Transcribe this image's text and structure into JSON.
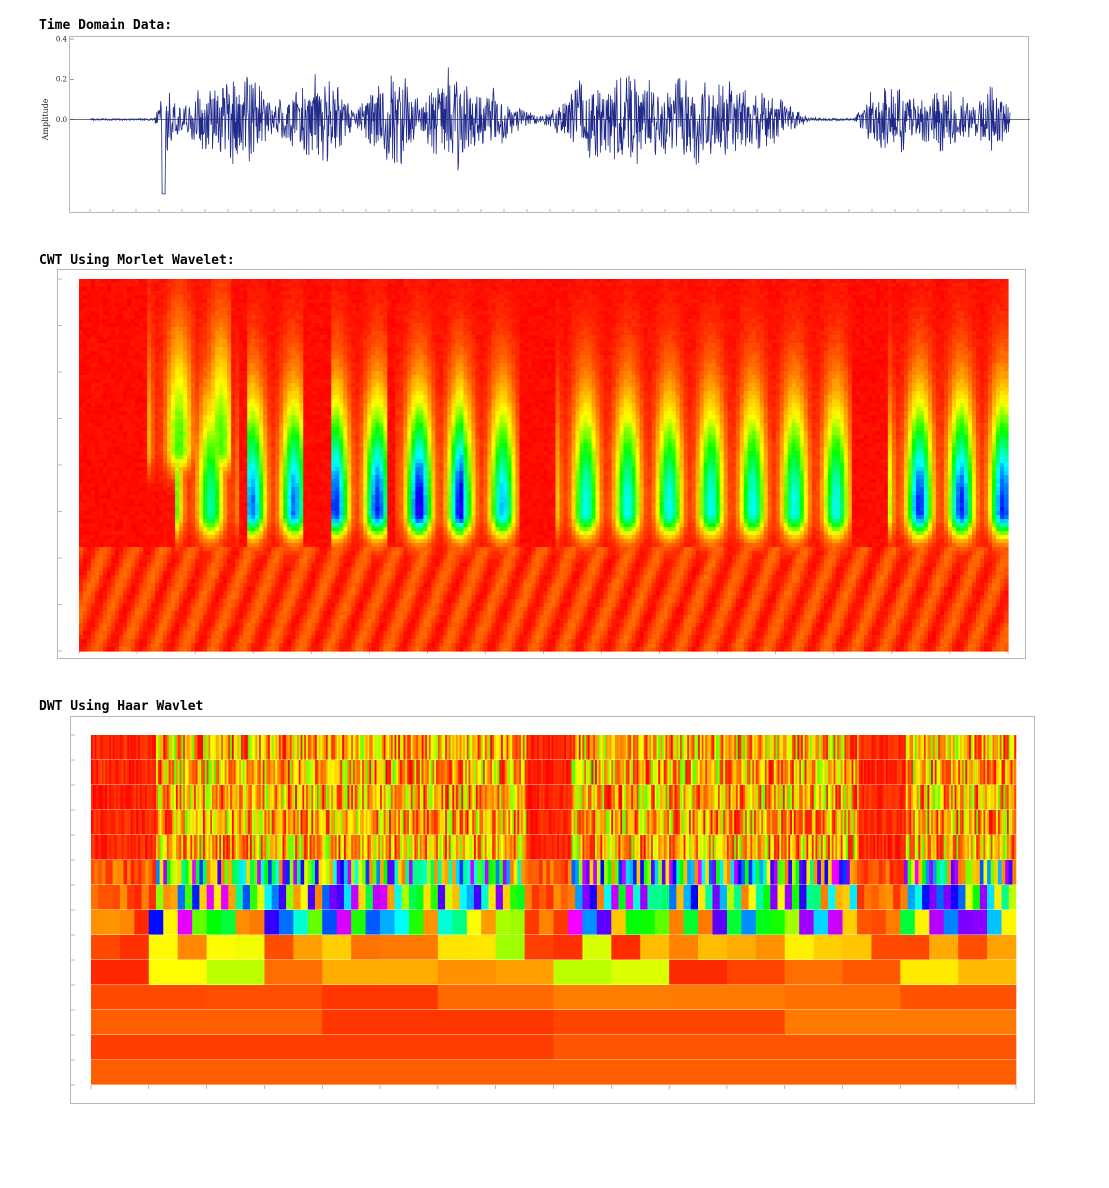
{
  "sections": {
    "time": {
      "title": "Time Domain Data:"
    },
    "cwt": {
      "title": "CWT Using Morlet Wavelet:"
    },
    "dwt": {
      "title": "DWT Using Haar Wavlet"
    }
  },
  "chart_data": [
    {
      "type": "line",
      "title": "Time Domain Data:",
      "ylabel": "Amplitude",
      "ylim": [
        -0.46,
        0.4
      ],
      "yticks": [
        0.4,
        0.2,
        0.0
      ],
      "ytick_labels": [
        "0.4",
        "0.2",
        "0.0"
      ],
      "series": [
        {
          "color": "#1f2a8a",
          "x_range": [
            0,
            1
          ],
          "envelope": [
            [
              0.0,
              0.005
            ],
            [
              0.07,
              0.005
            ],
            [
              0.08,
              0.19
            ],
            [
              0.09,
              0.15
            ],
            [
              0.1,
              0.06
            ],
            [
              0.12,
              0.16
            ],
            [
              0.15,
              0.24
            ],
            [
              0.18,
              0.21
            ],
            [
              0.2,
              0.08
            ],
            [
              0.23,
              0.18
            ],
            [
              0.25,
              0.25
            ],
            [
              0.27,
              0.18
            ],
            [
              0.29,
              0.04
            ],
            [
              0.31,
              0.2
            ],
            [
              0.34,
              0.25
            ],
            [
              0.36,
              0.08
            ],
            [
              0.38,
              0.24
            ],
            [
              0.4,
              0.3
            ],
            [
              0.42,
              0.12
            ],
            [
              0.44,
              0.18
            ],
            [
              0.46,
              0.07
            ],
            [
              0.49,
              0.02
            ],
            [
              0.51,
              0.08
            ],
            [
              0.53,
              0.22
            ],
            [
              0.56,
              0.2
            ],
            [
              0.59,
              0.25
            ],
            [
              0.62,
              0.18
            ],
            [
              0.65,
              0.24
            ],
            [
              0.68,
              0.22
            ],
            [
              0.71,
              0.18
            ],
            [
              0.74,
              0.14
            ],
            [
              0.76,
              0.08
            ],
            [
              0.78,
              0.01
            ],
            [
              0.83,
              0.005
            ],
            [
              0.85,
              0.16
            ],
            [
              0.88,
              0.2
            ],
            [
              0.9,
              0.1
            ],
            [
              0.93,
              0.18
            ],
            [
              0.96,
              0.08
            ],
            [
              0.98,
              0.2
            ],
            [
              1.0,
              0.06
            ]
          ]
        }
      ]
    },
    {
      "type": "heatmap",
      "title": "CWT Using Morlet Wavelet:",
      "colormap": [
        "#ff0000",
        "#ff8000",
        "#ffff00",
        "#00ff00",
        "#00ffff",
        "#0000ff",
        "#ff00ff"
      ],
      "bands": [
        {
          "scale": 0.45,
          "x": [
            0.08,
            0.15
          ],
          "intensity": 0.45
        },
        {
          "scale": 0.62,
          "x": [
            0.11,
            0.16
          ],
          "intensity": 0.6
        },
        {
          "scale": 0.62,
          "x": [
            0.19,
            0.23
          ],
          "intensity": 0.75
        },
        {
          "scale": 0.62,
          "x": [
            0.28,
            0.32
          ],
          "intensity": 0.8
        },
        {
          "scale": 0.62,
          "x": [
            0.35,
            0.4
          ],
          "intensity": 0.85
        },
        {
          "scale": 0.62,
          "x": [
            0.42,
            0.46
          ],
          "intensity": 0.7
        },
        {
          "scale": 0.62,
          "x": [
            0.52,
            0.82
          ],
          "intensity": 0.65
        },
        {
          "scale": 0.62,
          "x": [
            0.88,
            1.0
          ],
          "intensity": 0.8
        }
      ]
    },
    {
      "type": "heatmap",
      "title": "DWT Using Haar Wavlet",
      "levels": 14,
      "colormap": [
        "#ff0000",
        "#ff8000",
        "#ffff00",
        "#00ff00",
        "#00ffff",
        "#0000ff",
        "#ff00ff"
      ]
    }
  ]
}
